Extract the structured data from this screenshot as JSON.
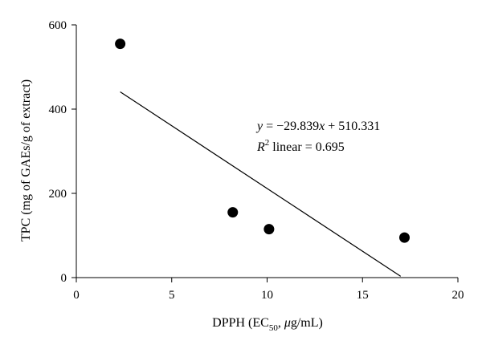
{
  "chart_data": {
    "type": "scatter",
    "xlabel": {
      "prefix": "DPPH (EC",
      "subscript": "50",
      "mid": ", ",
      "italic": "μ",
      "suffix": "g/mL)"
    },
    "ylabel": "TPC (mg of GAEs/g of extract)",
    "xlim": [
      0,
      20
    ],
    "ylim": [
      0,
      600
    ],
    "x_ticks": [
      0,
      5,
      10,
      15,
      20
    ],
    "y_ticks": [
      0,
      200,
      400,
      600
    ],
    "series": [
      {
        "points": [
          {
            "x": 2.3,
            "y": 555
          },
          {
            "x": 8.2,
            "y": 155
          },
          {
            "x": 10.1,
            "y": 115
          },
          {
            "x": 17.2,
            "y": 95
          }
        ]
      }
    ],
    "trendline": {
      "x_range": [
        2.3,
        17.0
      ],
      "y_range": [
        441,
        3
      ]
    },
    "annotation": {
      "equation": {
        "y": "y",
        "mid": " = −29.839",
        "x": "x",
        "tail": " + 510.331"
      },
      "r2": {
        "r": "R",
        "sup": "2",
        "tail": " linear = 0.695"
      }
    },
    "marker_color": "#000000",
    "line_color": "#000000",
    "grid": false,
    "legend": "none"
  }
}
